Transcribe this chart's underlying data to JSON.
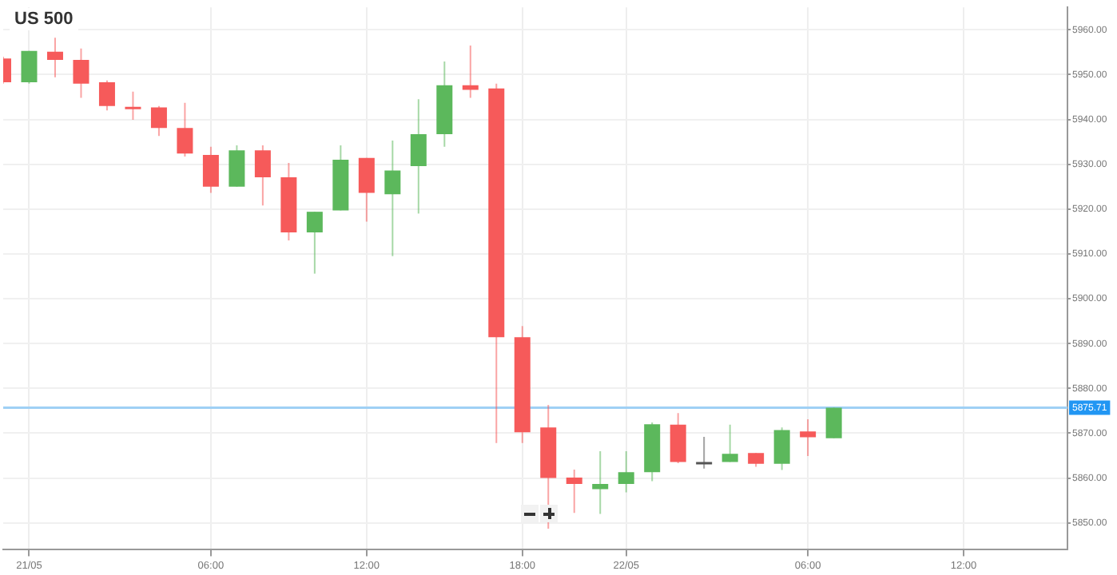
{
  "chart_data": {
    "type": "candlestick",
    "title": "US 500",
    "categories": [
      null,
      "21/05",
      null,
      null,
      null,
      null,
      null,
      null,
      "06:00",
      null,
      null,
      null,
      null,
      null,
      "12:00",
      null,
      null,
      null,
      null,
      null,
      "18:00",
      null,
      null,
      null,
      "22/05",
      null,
      null,
      null,
      null,
      null,
      null,
      "06:00",
      null,
      null,
      null,
      null,
      null,
      "12:00",
      null,
      null,
      null,
      null
    ],
    "ohlc": [
      [
        5953.6,
        5954,
        5948,
        5948.3
      ],
      [
        5948.3,
        5955.3,
        5948,
        5955.3
      ],
      [
        5955.1,
        5958.2,
        5949.4,
        5953.3
      ],
      [
        5953.3,
        5955.8,
        5944.8,
        5948
      ],
      [
        5948.3,
        5948.7,
        5942,
        5943
      ],
      [
        5942.8,
        5946.2,
        5939.9,
        5942.5
      ],
      [
        5942.7,
        5943,
        5936.3,
        5938.1
      ],
      [
        5938.1,
        5943.7,
        5931.7,
        5932.4
      ],
      [
        5932.1,
        5933.9,
        5923.6,
        5925
      ],
      [
        5925,
        5934.2,
        5925,
        5933.1
      ],
      [
        5933.1,
        5934.2,
        5920.8,
        5927.1
      ],
      [
        5927.1,
        5930.3,
        5913,
        5914.8
      ],
      [
        5914.8,
        5919.4,
        5905.6,
        5919.4
      ],
      [
        5919.7,
        5934.2,
        5919.7,
        5931
      ],
      [
        5931.4,
        5931.4,
        5917.2,
        5923.6
      ],
      [
        5923.3,
        5935.3,
        5909.5,
        5928.6
      ],
      [
        5929.6,
        5944.5,
        5919,
        5936.7
      ],
      [
        5936.7,
        5952.9,
        5933.9,
        5947.6
      ],
      [
        5947.6,
        5956.5,
        5944.8,
        5946.6
      ],
      [
        5946.9,
        5948,
        5867.8,
        5891.4
      ],
      [
        5891.4,
        5893.9,
        5867.8,
        5870.2
      ],
      [
        5871.3,
        5876.3,
        5848.7,
        5860
      ],
      [
        5860.1,
        5861.9,
        5852.2,
        5858.7
      ],
      [
        5857.5,
        5866,
        5852,
        5858.7
      ],
      [
        5858.7,
        5866,
        5856.8,
        5861.3
      ],
      [
        5861.3,
        5872.4,
        5859.3,
        5872
      ],
      [
        5871.9,
        5874.5,
        5863.3,
        5863.6
      ],
      [
        5863.6,
        5869.2,
        5862.1,
        5863.4
      ],
      [
        5863.6,
        5871.9,
        5863.6,
        5865.4
      ],
      [
        5865.6,
        5865.6,
        5862.5,
        5863.2
      ],
      [
        5863.2,
        5871.3,
        5861.8,
        5870.7
      ],
      [
        5870.4,
        5873.1,
        5864.9,
        5869.1
      ],
      [
        5868.9,
        5875.71,
        5868.9,
        5875.71
      ],
      null,
      null,
      null,
      null,
      null,
      null,
      null,
      null,
      null
    ],
    "colors": [
      "#f65a5a",
      "#5cb85c",
      "#f65a5a",
      "#f65a5a",
      "#f65a5a",
      "#f65a5a",
      "#f65a5a",
      "#f65a5a",
      "#f65a5a",
      "#5cb85c",
      "#f65a5a",
      "#f65a5a",
      "#5cb85c",
      "#5cb85c",
      "#f65a5a",
      "#5cb85c",
      "#5cb85c",
      "#5cb85c",
      "#f65a5a",
      "#f65a5a",
      "#f65a5a",
      "#f65a5a",
      "#f65a5a",
      "#5cb85c",
      "#5cb85c",
      "#5cb85c",
      "#f65a5a",
      "#555555",
      "#5cb85c",
      "#f65a5a",
      "#5cb85c",
      "#f65a5a",
      "#5cb85c",
      null,
      null,
      null,
      null,
      null,
      null,
      null,
      null,
      null
    ],
    "ylim": [
      5844,
      5965
    ],
    "yticks": [
      {
        "value": 5850,
        "label": "5850.00"
      },
      {
        "value": 5860,
        "label": "5860.00"
      },
      {
        "value": 5870,
        "label": "5870.00"
      },
      {
        "value": 5880,
        "label": "5880.00"
      },
      {
        "value": 5890,
        "label": "5890.00"
      },
      {
        "value": 5900,
        "label": "5900.00"
      },
      {
        "value": 5910,
        "label": "5910.00"
      },
      {
        "value": 5920,
        "label": "5920.00"
      },
      {
        "value": 5930,
        "label": "5930.00"
      },
      {
        "value": 5940,
        "label": "5940.00"
      },
      {
        "value": 5950,
        "label": "5950.00"
      },
      {
        "value": 5960,
        "label": "5960.00"
      }
    ],
    "grid": true,
    "ref_lines": [
      {
        "axis": "y",
        "value": 5875.71,
        "label": "5875.71",
        "color": "#9fd0f5"
      }
    ]
  }
}
